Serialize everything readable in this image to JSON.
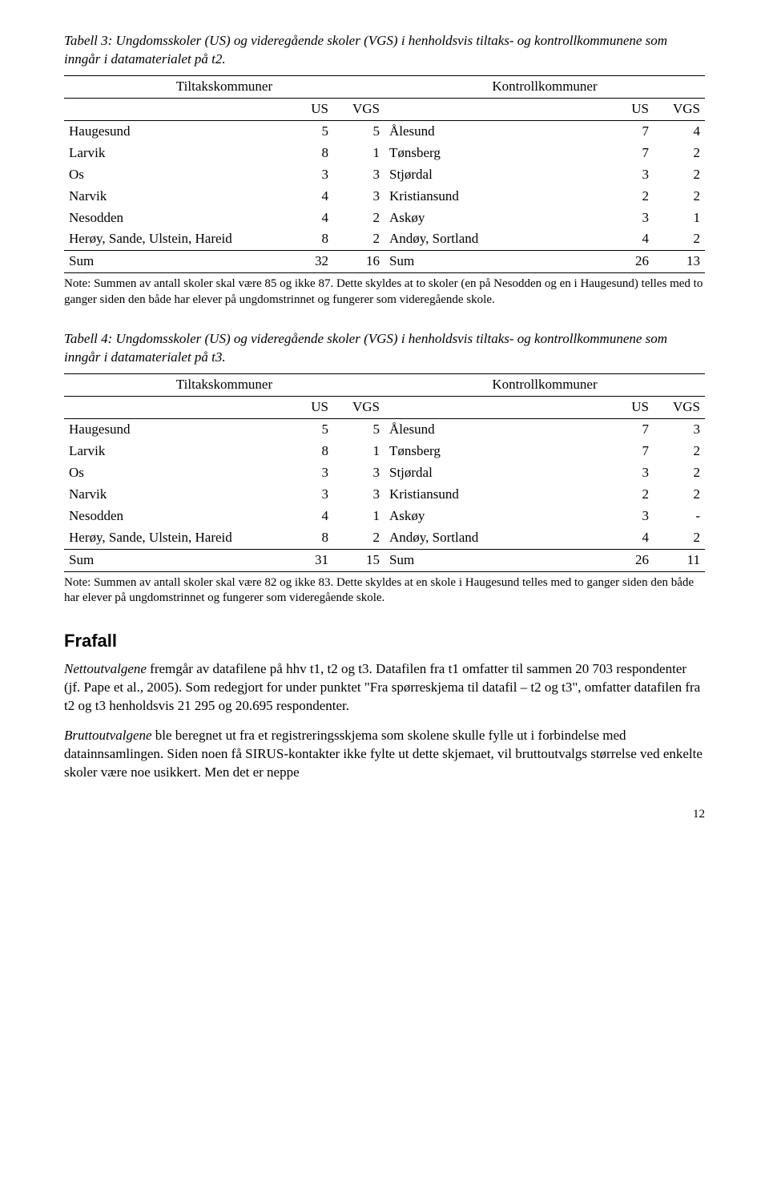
{
  "table3": {
    "caption": "Tabell 3: Ungdomsskoler (US) og videregående skoler (VGS) i henholdsvis tiltaks- og kontrollkommunene som inngår i datamaterialet på t2.",
    "head_left": "Tiltakskommuner",
    "head_right": "Kontrollkommuner",
    "col_us": "US",
    "col_vgs": "VGS",
    "rows": [
      {
        "l": "Haugesund",
        "lu": "5",
        "lv": "5",
        "r": "Ålesund",
        "ru": "7",
        "rv": "4"
      },
      {
        "l": "Larvik",
        "lu": "8",
        "lv": "1",
        "r": "Tønsberg",
        "ru": "7",
        "rv": "2"
      },
      {
        "l": "Os",
        "lu": "3",
        "lv": "3",
        "r": "Stjørdal",
        "ru": "3",
        "rv": "2"
      },
      {
        "l": "Narvik",
        "lu": "4",
        "lv": "3",
        "r": "Kristiansund",
        "ru": "2",
        "rv": "2"
      },
      {
        "l": "Nesodden",
        "lu": "4",
        "lv": "2",
        "r": "Askøy",
        "ru": "3",
        "rv": "1"
      },
      {
        "l": "Herøy, Sande, Ulstein, Hareid",
        "lu": "8",
        "lv": "2",
        "r": "Andøy, Sortland",
        "ru": "4",
        "rv": "2"
      }
    ],
    "sum": {
      "l": "Sum",
      "lu": "32",
      "lv": "16",
      "r": "Sum",
      "ru": "26",
      "rv": "13"
    },
    "note": "Note: Summen av antall skoler skal være 85 og ikke 87. Dette skyldes at to skoler (en på Nesodden og en i Haugesund) telles med to ganger siden den både har elever på ungdomstrinnet og fungerer som videregående skole."
  },
  "table4": {
    "caption": "Tabell 4: Ungdomsskoler (US) og videregående skoler (VGS) i henholdsvis tiltaks- og kontrollkommunene som inngår i datamaterialet på t3.",
    "head_left": "Tiltakskommuner",
    "head_right": "Kontrollkommuner",
    "col_us": "US",
    "col_vgs": "VGS",
    "rows": [
      {
        "l": "Haugesund",
        "lu": "5",
        "lv": "5",
        "r": "Ålesund",
        "ru": "7",
        "rv": "3"
      },
      {
        "l": "Larvik",
        "lu": "8",
        "lv": "1",
        "r": "Tønsberg",
        "ru": "7",
        "rv": "2"
      },
      {
        "l": "Os",
        "lu": "3",
        "lv": "3",
        "r": "Stjørdal",
        "ru": "3",
        "rv": "2"
      },
      {
        "l": "Narvik",
        "lu": "3",
        "lv": "3",
        "r": "Kristiansund",
        "ru": "2",
        "rv": "2"
      },
      {
        "l": "Nesodden",
        "lu": "4",
        "lv": "1",
        "r": "Askøy",
        "ru": "3",
        "rv": "-"
      },
      {
        "l": "Herøy, Sande, Ulstein, Hareid",
        "lu": "8",
        "lv": "2",
        "r": "Andøy, Sortland",
        "ru": "4",
        "rv": "2"
      }
    ],
    "sum": {
      "l": "Sum",
      "lu": "31",
      "lv": "15",
      "r": "Sum",
      "ru": "26",
      "rv": "11"
    },
    "note": "Note: Summen av antall skoler skal være 82 og ikke 83. Dette skyldes at en skole i Haugesund telles med to ganger siden den både har elever på ungdomstrinnet og fungerer som videregående skole."
  },
  "section_heading": "Frafall",
  "para1_lead": "Nettoutvalgene",
  "para1_rest": " fremgår av datafilene på hhv t1, t2 og t3. Datafilen fra t1 omfatter til sammen 20 703 respondenter (jf. Pape et al., 2005). Som redegjort for under punktet \"Fra spørreskjema til datafil – t2 og t3\", omfatter datafilen fra t2 og t3 henholdsvis 21 295 og 20.695 respondenter.",
  "para2_lead": "Bruttoutvalgene",
  "para2_rest": " ble beregnet ut fra et registreringsskjema som skolene skulle fylle ut i forbindelse med datainnsamlingen. Siden noen få SIRUS-kontakter ikke fylte ut dette skjemaet, vil bruttoutvalgs størrelse ved enkelte skoler være noe usikkert. Men det er neppe",
  "pagenum": "12",
  "layout": {
    "col_widths": {
      "lname": "34%",
      "lu": "8%",
      "lv": "8%",
      "rname": "34%",
      "ru": "8%",
      "rv": "8%"
    }
  }
}
